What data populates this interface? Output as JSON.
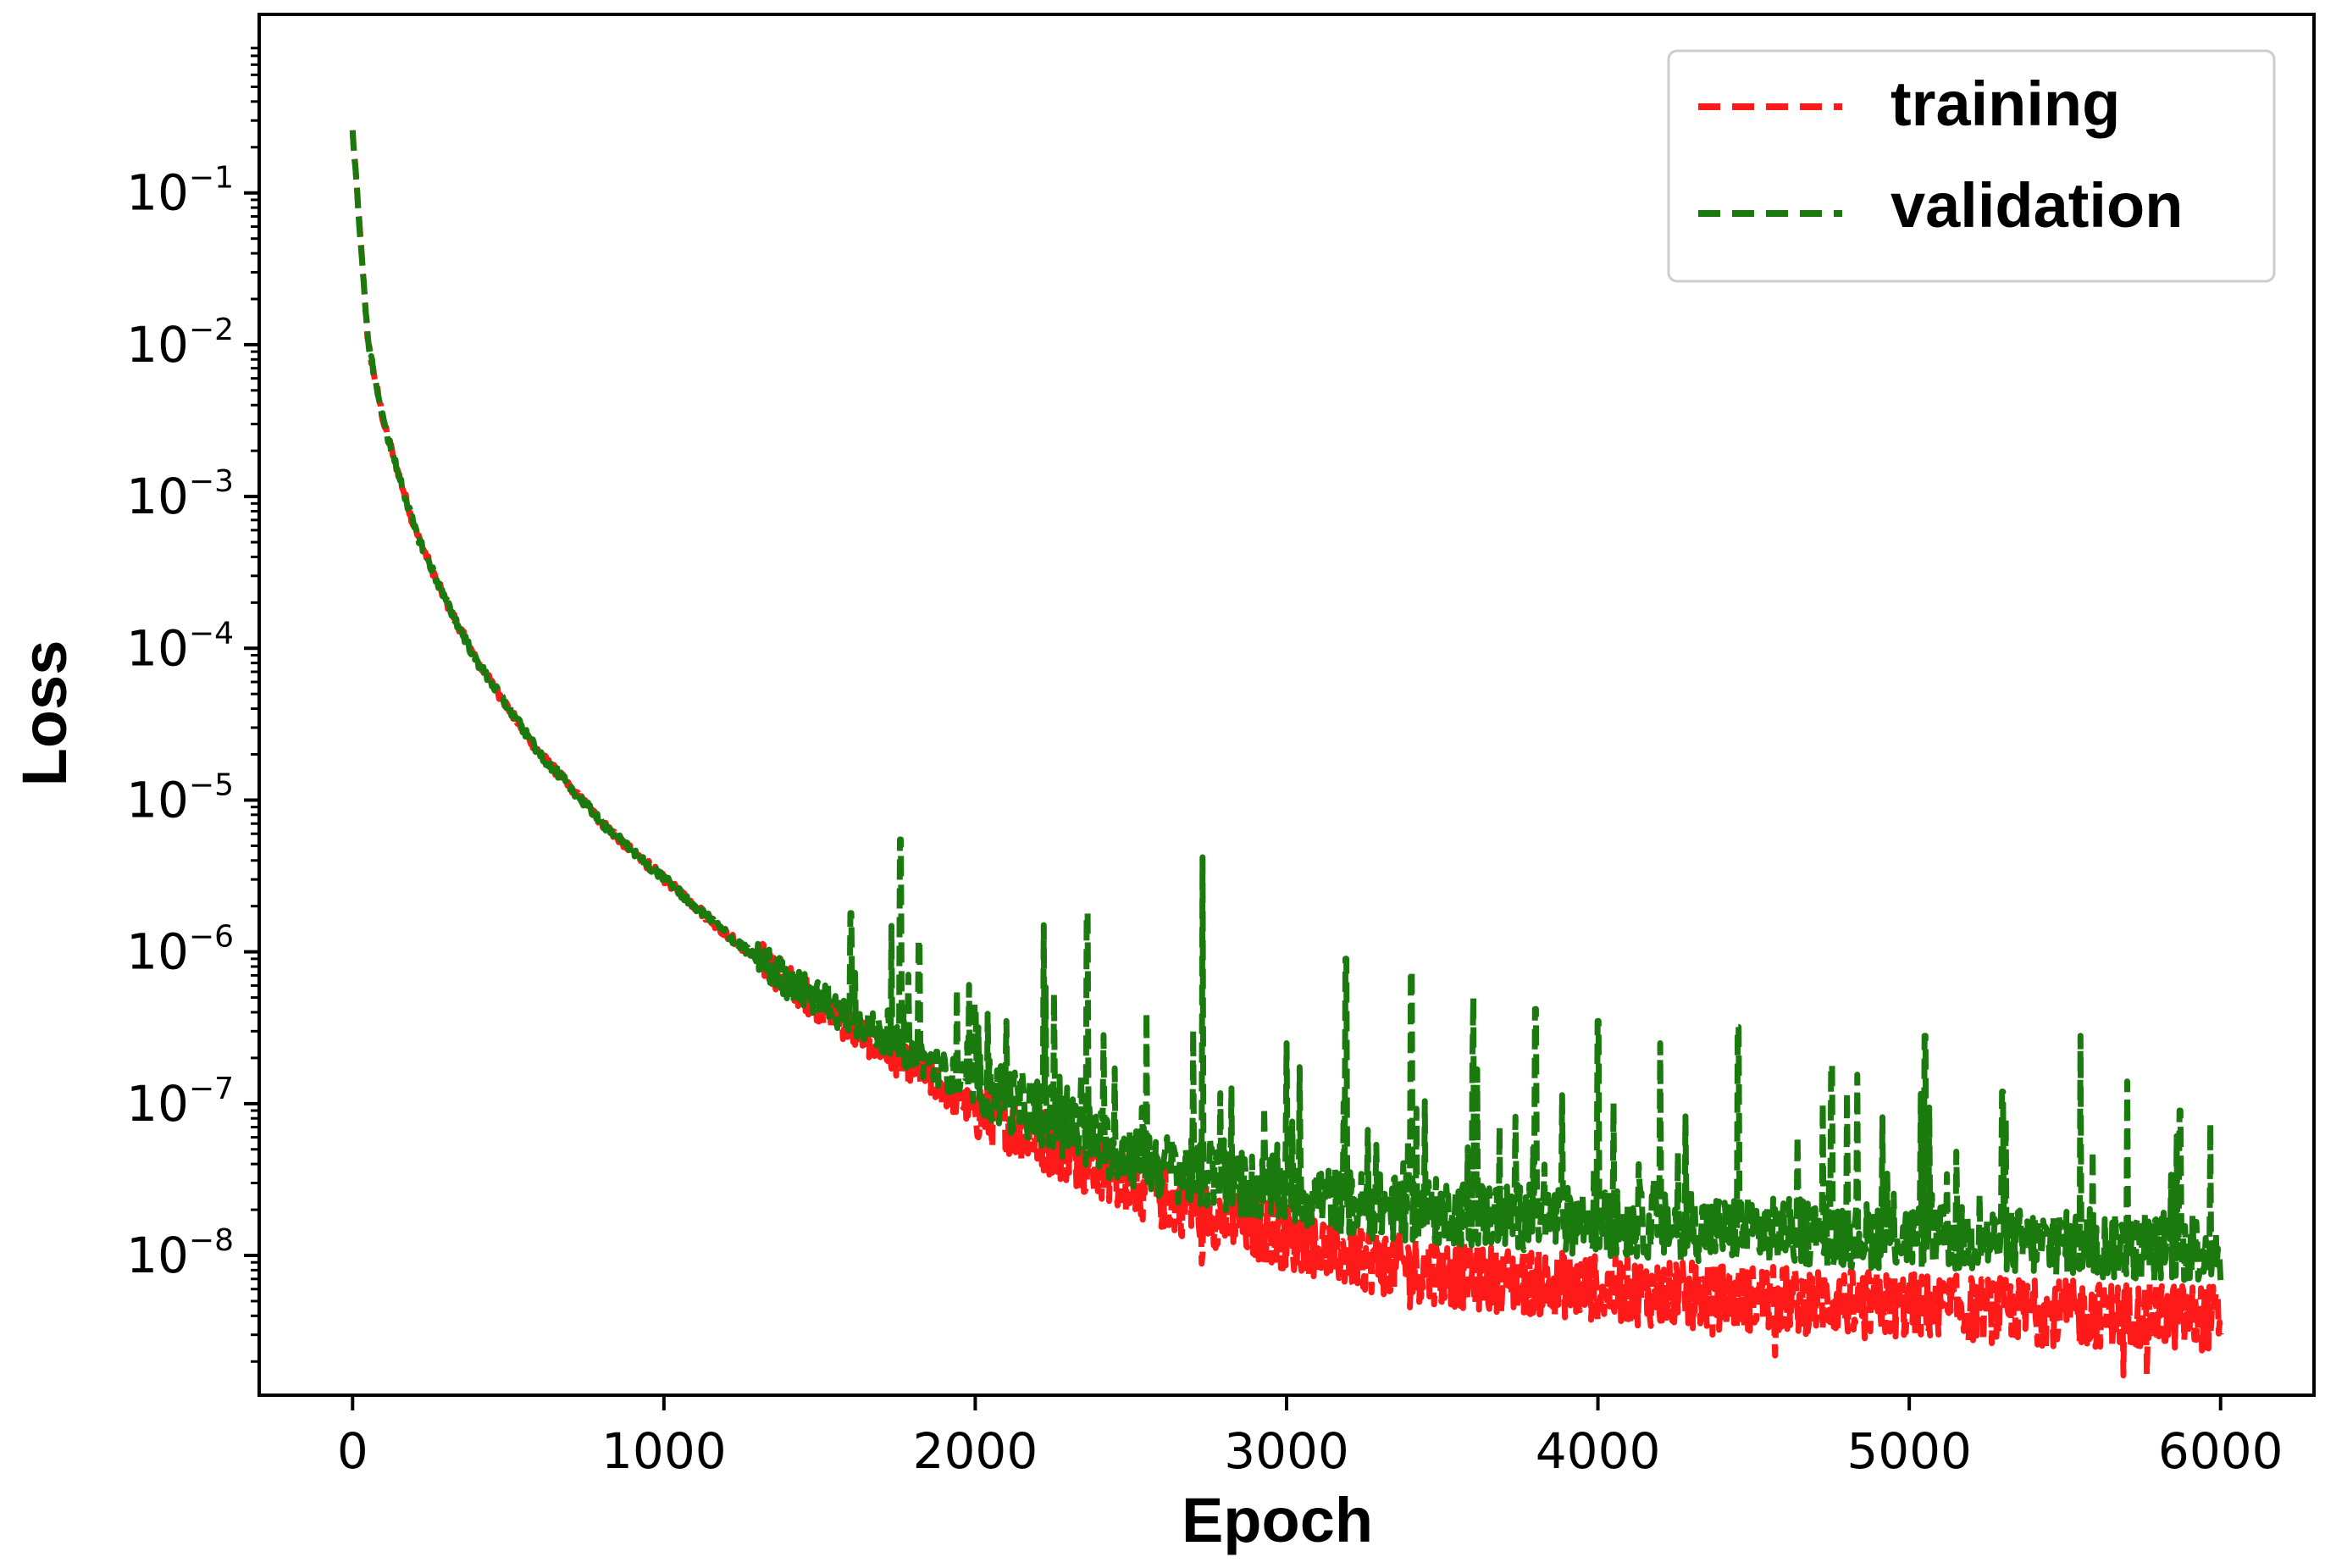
{
  "chart_data": {
    "type": "line",
    "title": "",
    "xlabel": "Epoch",
    "ylabel": "Loss",
    "xlim": [
      -300,
      6300
    ],
    "ylim": [
      1.2e-09,
      1.5
    ],
    "yscale": "log",
    "grid": false,
    "legend_position": "top-right",
    "x_ticks": [
      0,
      1000,
      2000,
      3000,
      4000,
      5000,
      6000
    ],
    "x_tick_labels": [
      "0",
      "1000",
      "2000",
      "3000",
      "4000",
      "5000",
      "6000"
    ],
    "y_ticks": [
      0.1,
      0.01,
      0.001,
      0.0001,
      1e-05,
      1e-06,
      1e-07,
      1e-08
    ],
    "y_tick_labels": [
      {
        "base": "10",
        "exp": "−1"
      },
      {
        "base": "10",
        "exp": "−2"
      },
      {
        "base": "10",
        "exp": "−3"
      },
      {
        "base": "10",
        "exp": "−4"
      },
      {
        "base": "10",
        "exp": "−5"
      },
      {
        "base": "10",
        "exp": "−6"
      },
      {
        "base": "10",
        "exp": "−7"
      },
      {
        "base": "10",
        "exp": "−8"
      }
    ],
    "series": [
      {
        "name": "training",
        "color": "#ff1a1a",
        "style": "dashed",
        "x": [
          0,
          25,
          50,
          100,
          200,
          300,
          400,
          500,
          600,
          700,
          800,
          900,
          1000,
          1200,
          1400,
          1600,
          1800,
          2000,
          2200,
          2400,
          2600,
          2800,
          3000,
          3200,
          3400,
          3600,
          3800,
          4000,
          4200,
          4400,
          4600,
          4800,
          5000,
          5200,
          5400,
          5600,
          5800,
          6000
        ],
        "y": [
          0.25,
          0.05,
          0.01,
          0.003,
          0.0006,
          0.0002,
          8e-05,
          4e-05,
          2e-05,
          1.2e-05,
          7e-06,
          4.5e-06,
          3e-06,
          1.3e-06,
          6e-07,
          3e-07,
          1.6e-07,
          8.5e-08,
          5.5e-08,
          3.5e-08,
          2.2e-08,
          1.6e-08,
          1.2e-08,
          9e-09,
          7.5e-09,
          6.5e-09,
          6e-09,
          5.5e-09,
          5e-09,
          4.8e-09,
          4.6e-09,
          4.4e-09,
          4.2e-09,
          4e-09,
          3.8e-09,
          3.7e-09,
          3.6e-09,
          3.5e-09
        ]
      },
      {
        "name": "validation",
        "color": "#1a7a0d",
        "style": "dashed",
        "x": [
          0,
          25,
          50,
          100,
          200,
          300,
          400,
          500,
          600,
          700,
          800,
          900,
          1000,
          1200,
          1400,
          1600,
          1800,
          2000,
          2200,
          2400,
          2600,
          2800,
          3000,
          3200,
          3400,
          3600,
          3800,
          4000,
          4200,
          4400,
          4600,
          4800,
          5000,
          5200,
          5400,
          5600,
          5800,
          6000
        ],
        "y": [
          0.25,
          0.05,
          0.01,
          0.003,
          0.0006,
          0.0002,
          8e-05,
          4e-05,
          2e-05,
          1.2e-05,
          7e-06,
          4.5e-06,
          3e-06,
          1.3e-06,
          6e-07,
          3.5e-07,
          2e-07,
          1.2e-07,
          8e-08,
          5e-08,
          3.5e-08,
          2.8e-08,
          2.4e-08,
          2e-08,
          1.8e-08,
          1.7e-08,
          1.6e-08,
          1.5e-08,
          1.4e-08,
          1.35e-08,
          1.3e-08,
          1.25e-08,
          1.2e-08,
          1.15e-08,
          1.1e-08,
          1.05e-08,
          1e-08,
          1e-08
        ],
        "spikes": [
          {
            "x": 1600,
            "y": 1.8e-06
          },
          {
            "x": 1760,
            "y": 5.5e-06
          },
          {
            "x": 1820,
            "y": 1.2e-06
          },
          {
            "x": 2000,
            "y": 4.5e-07
          },
          {
            "x": 2100,
            "y": 3.5e-07
          },
          {
            "x": 2220,
            "y": 1.5e-06
          },
          {
            "x": 2360,
            "y": 1.8e-06
          },
          {
            "x": 2550,
            "y": 4e-07
          },
          {
            "x": 2730,
            "y": 4.2e-06
          },
          {
            "x": 3000,
            "y": 2.5e-07
          },
          {
            "x": 3190,
            "y": 9e-07
          },
          {
            "x": 3400,
            "y": 7.5e-07
          },
          {
            "x": 3600,
            "y": 5e-07
          },
          {
            "x": 3800,
            "y": 4.2e-07
          },
          {
            "x": 4000,
            "y": 3.5e-07
          },
          {
            "x": 4200,
            "y": 2.5e-07
          },
          {
            "x": 4450,
            "y": 3.2e-07
          },
          {
            "x": 4750,
            "y": 1.8e-07
          },
          {
            "x": 5050,
            "y": 2.8e-07
          },
          {
            "x": 5300,
            "y": 1.2e-07
          },
          {
            "x": 5550,
            "y": 2.8e-07
          },
          {
            "x": 5700,
            "y": 1.4e-07
          },
          {
            "x": 5870,
            "y": 9e-08
          }
        ]
      }
    ]
  }
}
